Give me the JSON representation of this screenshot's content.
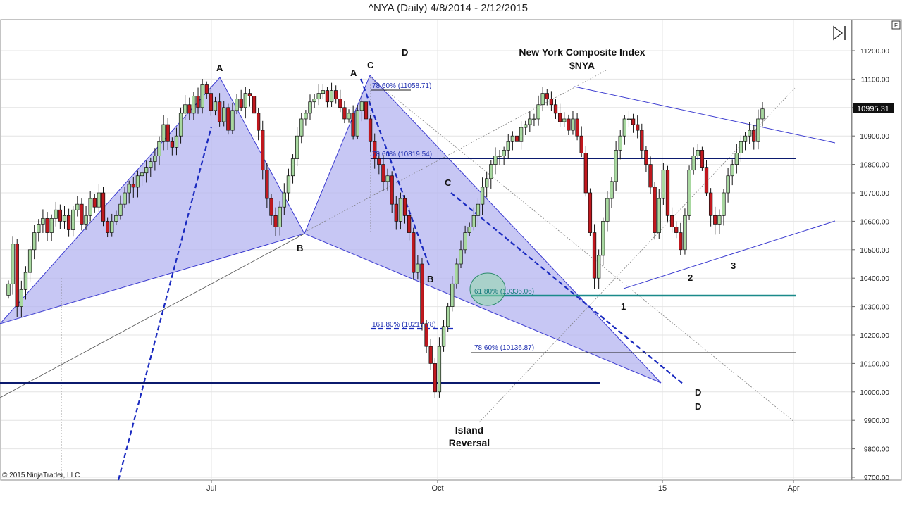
{
  "window": {
    "title": "^NYA (Daily)  4/8/2014 - 2/12/2015",
    "f_box": "F",
    "copyright": "© 2015 NinjaTrader, LLC",
    "play_icon": "play-pause-icon"
  },
  "colors": {
    "up_candle": "#a8d8a0",
    "down_candle": "#c0181e",
    "pattern_fill": "#b4b4f0",
    "pattern_stroke": "#3030c8",
    "dashed_blue": "#1a2ac0",
    "navy_level": "#0b1a6e",
    "teal_level": "#1a8a8a"
  },
  "chart_data": {
    "type": "candlestick",
    "symbol": "^NYA",
    "ylim": [
      9700,
      11300
    ],
    "y_ticks": [
      "11200.00",
      "11100.00",
      "11000.00",
      "10900.00",
      "10800.00",
      "10700.00",
      "10600.00",
      "10500.00",
      "10400.00",
      "10300.00",
      "10200.00",
      "10100.00",
      "10000.00",
      "9900.00",
      "9800.00",
      "9700.00"
    ],
    "x_ticks": [
      "Jul",
      "Oct",
      "15",
      "Apr"
    ],
    "last_price": "10995.31",
    "annotations": {
      "title_line1": "New York Composite Index",
      "title_line2": "$NYA",
      "island_line1": "Island",
      "island_line2": "Reversal",
      "points": [
        "A",
        "B",
        "C",
        "D",
        "A",
        "B",
        "C",
        "D",
        "D",
        "1",
        "2",
        "3"
      ]
    },
    "fib_levels": [
      {
        "label": "78.60% (11058.71)",
        "value": 11058.71
      },
      {
        "label": "78.60% (10819.54)",
        "value": 10819.54
      },
      {
        "label": "61.80% (10336.06)",
        "value": 10336.06
      },
      {
        "label": "161.80% (10217.78)",
        "value": 10217.78
      },
      {
        "label": "78.60% (10136.87)",
        "value": 10136.87
      }
    ],
    "closes": [
      10380,
      10520,
      10300,
      10360,
      10420,
      10500,
      10560,
      10590,
      10610,
      10560,
      10610,
      10640,
      10600,
      10620,
      10570,
      10640,
      10660,
      10590,
      10620,
      10680,
      10650,
      10700,
      10600,
      10560,
      10600,
      10620,
      10660,
      10700,
      10730,
      10720,
      10760,
      10770,
      10790,
      10810,
      10830,
      10880,
      10940,
      10880,
      10860,
      10900,
      10980,
      11010,
      10980,
      11040,
      11000,
      11080,
      11050,
      10990,
      11020,
      10950,
      11000,
      10920,
      10990,
      11030,
      11000,
      11050,
      11040,
      10980,
      10920,
      10780,
      10680,
      10620,
      10580,
      10650,
      10700,
      10760,
      10820,
      10900,
      10960,
      10980,
      11020,
      11030,
      11050,
      11060,
      11020,
      11060,
      11030,
      11000,
      10960,
      10980,
      10900,
      10990,
      11020,
      10960,
      10880,
      10820,
      10800,
      10740,
      10760,
      10660,
      10600,
      10680,
      10620,
      10560,
      10420,
      10450,
      10240,
      10160,
      10100,
      10000,
      10160,
      10230,
      10300,
      10380,
      10450,
      10500,
      10560,
      10580,
      10620,
      10660,
      10720,
      10750,
      10800,
      10830,
      10830,
      10850,
      10880,
      10900,
      10880,
      10930,
      10940,
      10960,
      10960,
      11010,
      11050,
      11030,
      11010,
      10980,
      10950,
      10960,
      10920,
      10960,
      10900,
      10840,
      10700,
      10560,
      10400,
      10480,
      10600,
      10680,
      10740,
      10850,
      10900,
      10960,
      10960,
      10940,
      10920,
      10850,
      10800,
      10720,
      10560,
      10680,
      10780,
      10620,
      10580,
      10560,
      10500,
      10620,
      10780,
      10830,
      10850,
      10790,
      10700,
      10620,
      10590,
      10620,
      10700,
      10760,
      10800,
      10840,
      10880,
      10900,
      10920,
      10880,
      10960,
      10995.31
    ]
  }
}
